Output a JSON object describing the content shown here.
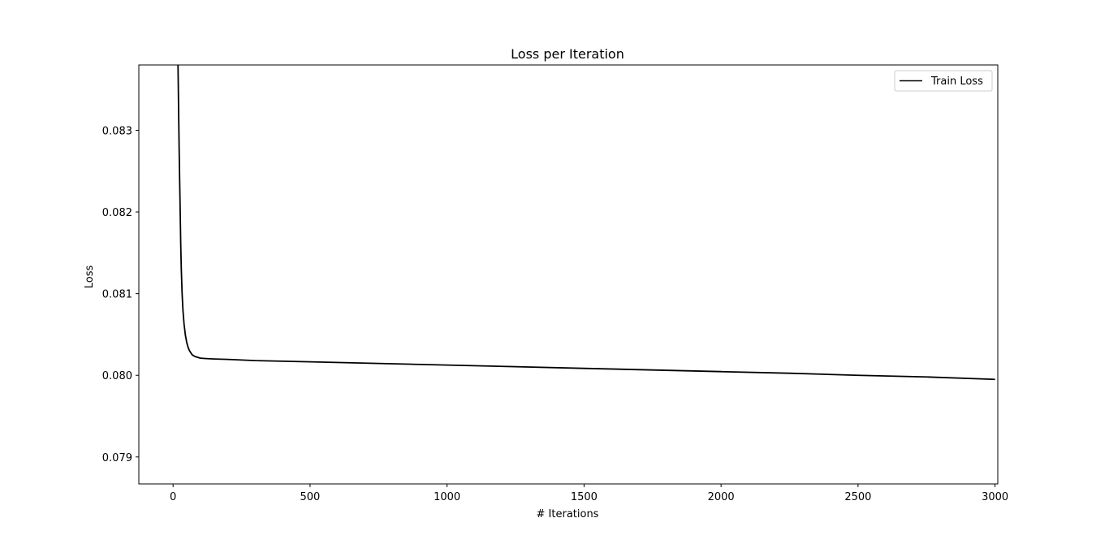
{
  "chart_data": {
    "type": "line",
    "title": "Loss per Iteration",
    "xlabel": "# Iterations",
    "ylabel": "Loss",
    "xlim": [
      -125,
      3010
    ],
    "ylim": [
      0.07867,
      0.0838
    ],
    "x_ticks": [
      0,
      500,
      1000,
      1500,
      2000,
      2500,
      3000
    ],
    "y_ticks": [
      0.079,
      0.08,
      0.081,
      0.082,
      0.083
    ],
    "x_tick_labels": [
      "0",
      "500",
      "1000",
      "1500",
      "2000",
      "2500",
      "3000"
    ],
    "y_tick_labels": [
      "0.079",
      "0.080",
      "0.081",
      "0.082",
      "0.083"
    ],
    "grid": false,
    "legend_position": "top-right",
    "series": [
      {
        "name": "Train Loss",
        "color": "#000000",
        "x": [
          18,
          20,
          22,
          24,
          26,
          28,
          30,
          33,
          36,
          40,
          45,
          50,
          55,
          60,
          70,
          80,
          90,
          100,
          120,
          150,
          200,
          300,
          500,
          750,
          1000,
          1250,
          1500,
          1750,
          2000,
          2250,
          2500,
          2750,
          3000
        ],
        "y": [
          0.0838,
          0.0833,
          0.0828,
          0.0824,
          0.082,
          0.0816,
          0.0813,
          0.081,
          0.0808,
          0.08063,
          0.08049,
          0.0804,
          0.08034,
          0.0803,
          0.08025,
          0.08023,
          0.08022,
          0.08021,
          0.080205,
          0.0802,
          0.080195,
          0.08018,
          0.080165,
          0.080145,
          0.080125,
          0.080105,
          0.080085,
          0.080065,
          0.080045,
          0.080025,
          0.08,
          0.07998,
          0.07995
        ]
      }
    ]
  }
}
